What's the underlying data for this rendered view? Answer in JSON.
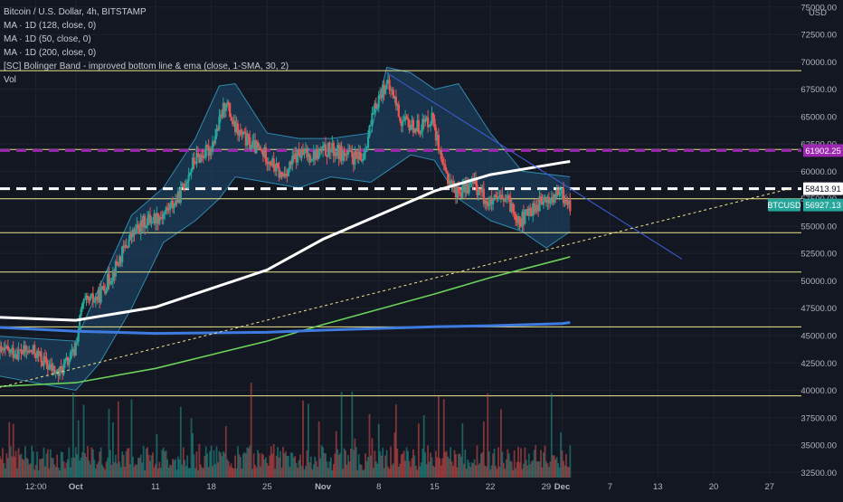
{
  "legend": {
    "symbol_line": "Bitcoin / U.S. Dollar, 4h, BITSTAMP",
    "ma1": "MA · 1D (128, close, 0)",
    "ma2": "MA · 1D (50, close, 0)",
    "ma3": "MA · 1D (200, close, 0)",
    "bb": "[SC] Bolinger Band - improved bottom line & ema (close, 1-SMA, 30, 2)",
    "vol": "Vol"
  },
  "colors": {
    "background": "#131722",
    "grid": "#1e222d",
    "up": "#26a69a",
    "down": "#ef5350",
    "horizontal_level": "#f0e68c",
    "dashed_white": "#ffffff",
    "dashed_purple": "#9c27b0",
    "ma_white": "#ffffff",
    "ma_green": "#6bd15a",
    "ma_blue": "#3d7be0",
    "bb_fill": "#1e4a6e",
    "bb_line": "#2f8ab0",
    "trendline": "#3d5fd8",
    "support_dotted": "#f0e68c",
    "tag_btcusd": "#26a69a",
    "tag_purple": "#9c27b0"
  },
  "chart_data": {
    "type": "candlestick",
    "symbol": "BTCUSD",
    "exchange": "BITSTAMP",
    "interval": "4h",
    "y_axis": {
      "currency": "USD",
      "ylim": [
        32500,
        75000
      ],
      "ticks": [
        "75000.00",
        "72500.00",
        "70000.00",
        "67500.00",
        "65000.00",
        "62500.00",
        "60000.00",
        "57500.00",
        "55000.00",
        "52500.00",
        "50000.00",
        "47500.00",
        "45000.00",
        "42500.00",
        "40000.00",
        "37500.00",
        "35000.00",
        "32500.00"
      ]
    },
    "x_axis": {
      "ticks": [
        {
          "label": "12:00",
          "date": "2021-09-26"
        },
        {
          "label": "Oct",
          "date": "2021-10-01"
        },
        {
          "label": "11",
          "date": "2021-10-11"
        },
        {
          "label": "18",
          "date": "2021-10-18"
        },
        {
          "label": "25",
          "date": "2021-10-25"
        },
        {
          "label": "Nov",
          "date": "2021-11-01"
        },
        {
          "label": "8",
          "date": "2021-11-08"
        },
        {
          "label": "15",
          "date": "2021-11-15"
        },
        {
          "label": "22",
          "date": "2021-11-22"
        },
        {
          "label": "29",
          "date": "2021-11-29"
        },
        {
          "label": "Dec",
          "date": "2021-12-01"
        },
        {
          "label": "7",
          "date": "2021-12-07"
        },
        {
          "label": "13",
          "date": "2021-12-13"
        },
        {
          "label": "20",
          "date": "2021-12-20"
        },
        {
          "label": "27",
          "date": "2021-12-27"
        }
      ]
    },
    "price_path": [
      [
        "2021-09-26",
        43500
      ],
      [
        "2021-09-28",
        42000
      ],
      [
        "2021-09-29",
        41500
      ],
      [
        "2021-10-01",
        43500
      ],
      [
        "2021-10-02",
        47800
      ],
      [
        "2021-10-04",
        48500
      ],
      [
        "2021-10-06",
        51000
      ],
      [
        "2021-10-08",
        54000
      ],
      [
        "2021-10-10",
        55500
      ],
      [
        "2021-10-12",
        56000
      ],
      [
        "2021-10-14",
        57500
      ],
      [
        "2021-10-16",
        61000
      ],
      [
        "2021-10-18",
        62000
      ],
      [
        "2021-10-19",
        64000
      ],
      [
        "2021-10-20",
        66500
      ],
      [
        "2021-10-21",
        64000
      ],
      [
        "2021-10-23",
        62500
      ],
      [
        "2021-10-25",
        61500
      ],
      [
        "2021-10-27",
        59500
      ],
      [
        "2021-10-29",
        61500
      ],
      [
        "2021-10-31",
        61500
      ],
      [
        "2021-11-02",
        62000
      ],
      [
        "2021-11-04",
        61500
      ],
      [
        "2021-11-06",
        61000
      ],
      [
        "2021-11-08",
        66500
      ],
      [
        "2021-11-09",
        68000
      ],
      [
        "2021-11-10",
        67000
      ],
      [
        "2021-11-11",
        64500
      ],
      [
        "2021-11-13",
        64000
      ],
      [
        "2021-11-15",
        65000
      ],
      [
        "2021-11-16",
        60500
      ],
      [
        "2021-11-18",
        58000
      ],
      [
        "2021-11-20",
        59000
      ],
      [
        "2021-11-22",
        57000
      ],
      [
        "2021-11-24",
        57500
      ],
      [
        "2021-11-26",
        55500
      ],
      [
        "2021-11-28",
        57000
      ],
      [
        "2021-11-29",
        57200
      ],
      [
        "2021-11-30",
        57500
      ],
      [
        "2021-12-01",
        58000
      ],
      [
        "2021-12-02",
        56927.13
      ]
    ],
    "moving_averages": [
      {
        "name": "MA · 1D (128, close, 0)",
        "color": "#ffffff",
        "points": [
          [
            "2021-09-20",
            46700
          ],
          [
            "2021-10-01",
            46400
          ],
          [
            "2021-10-11",
            47600
          ],
          [
            "2021-10-25",
            51000
          ],
          [
            "2021-11-01",
            53800
          ],
          [
            "2021-11-15",
            58200
          ],
          [
            "2021-11-22",
            59700
          ],
          [
            "2021-12-01",
            60800
          ],
          [
            "2021-12-02",
            60900
          ]
        ]
      },
      {
        "name": "MA · 1D (50, close, 0)",
        "color": "#6bd15a",
        "points": [
          [
            "2021-09-20",
            40300
          ],
          [
            "2021-10-01",
            40700
          ],
          [
            "2021-10-11",
            42000
          ],
          [
            "2021-10-25",
            44500
          ],
          [
            "2021-11-01",
            46000
          ],
          [
            "2021-11-15",
            48800
          ],
          [
            "2021-11-22",
            50300
          ],
          [
            "2021-12-01",
            52000
          ],
          [
            "2021-12-02",
            52200
          ]
        ]
      },
      {
        "name": "MA · 1D (200, close, 0)",
        "color": "#3d7be0",
        "points": [
          [
            "2021-09-20",
            45800
          ],
          [
            "2021-10-01",
            45400
          ],
          [
            "2021-10-11",
            45200
          ],
          [
            "2021-10-25",
            45300
          ],
          [
            "2021-11-01",
            45500
          ],
          [
            "2021-11-15",
            45800
          ],
          [
            "2021-11-22",
            45900
          ],
          [
            "2021-12-01",
            46100
          ],
          [
            "2021-12-02",
            46200
          ]
        ]
      }
    ],
    "bollinger": {
      "upper": [
        [
          "2021-09-20",
          45000
        ],
        [
          "2021-10-01",
          44500
        ],
        [
          "2021-10-04",
          49500
        ],
        [
          "2021-10-08",
          56000
        ],
        [
          "2021-10-12",
          58500
        ],
        [
          "2021-10-16",
          63000
        ],
        [
          "2021-10-19",
          67800
        ],
        [
          "2021-10-21",
          68000
        ],
        [
          "2021-10-25",
          63500
        ],
        [
          "2021-10-29",
          63000
        ],
        [
          "2021-11-02",
          63000
        ],
        [
          "2021-11-07",
          63500
        ],
        [
          "2021-11-09",
          69500
        ],
        [
          "2021-11-12",
          69000
        ],
        [
          "2021-11-15",
          67500
        ],
        [
          "2021-11-18",
          68000
        ],
        [
          "2021-11-22",
          63500
        ],
        [
          "2021-11-26",
          60000
        ],
        [
          "2021-12-02",
          59500
        ]
      ],
      "lower": [
        [
          "2021-09-20",
          41500
        ],
        [
          "2021-10-01",
          40000
        ],
        [
          "2021-10-04",
          42500
        ],
        [
          "2021-10-08",
          47500
        ],
        [
          "2021-10-12",
          53500
        ],
        [
          "2021-10-16",
          55500
        ],
        [
          "2021-10-19",
          57500
        ],
        [
          "2021-10-21",
          59500
        ],
        [
          "2021-10-25",
          59000
        ],
        [
          "2021-10-29",
          58500
        ],
        [
          "2021-11-02",
          59500
        ],
        [
          "2021-11-07",
          59000
        ],
        [
          "2021-11-09",
          60000
        ],
        [
          "2021-11-12",
          61500
        ],
        [
          "2021-11-15",
          61000
        ],
        [
          "2021-11-18",
          57500
        ],
        [
          "2021-11-22",
          55500
        ],
        [
          "2021-11-26",
          54500
        ],
        [
          "2021-11-29",
          53000
        ],
        [
          "2021-12-02",
          54500
        ]
      ]
    },
    "horizontal_levels": [
      69200,
      62000,
      57500,
      54400,
      50800,
      45800,
      39500
    ],
    "dashed_levels": [
      {
        "price": 61902.25,
        "color": "#9c27b0"
      },
      {
        "price": 58413.91,
        "color": "#ffffff"
      }
    ],
    "trendlines": [
      {
        "style": "solid",
        "color": "#3d5fd8",
        "points": [
          [
            "2021-11-09",
            69000
          ],
          [
            "2021-12-16",
            52000
          ]
        ]
      },
      {
        "style": "dotted",
        "color": "#f0e68c",
        "points": [
          [
            "2021-09-20",
            40000
          ],
          [
            "2021-12-30",
            58500
          ]
        ]
      }
    ],
    "price_tags": [
      {
        "price": 61902.25,
        "label": "61902.25",
        "color": "#9c27b0"
      },
      {
        "price": 58413.91,
        "label": "58413.91",
        "color": "#ffffff"
      },
      {
        "price": 56927.13,
        "label": "56927.13",
        "symbol": "BTCUSD",
        "color": "#26a69a"
      }
    ],
    "volume_scale": "relative"
  }
}
